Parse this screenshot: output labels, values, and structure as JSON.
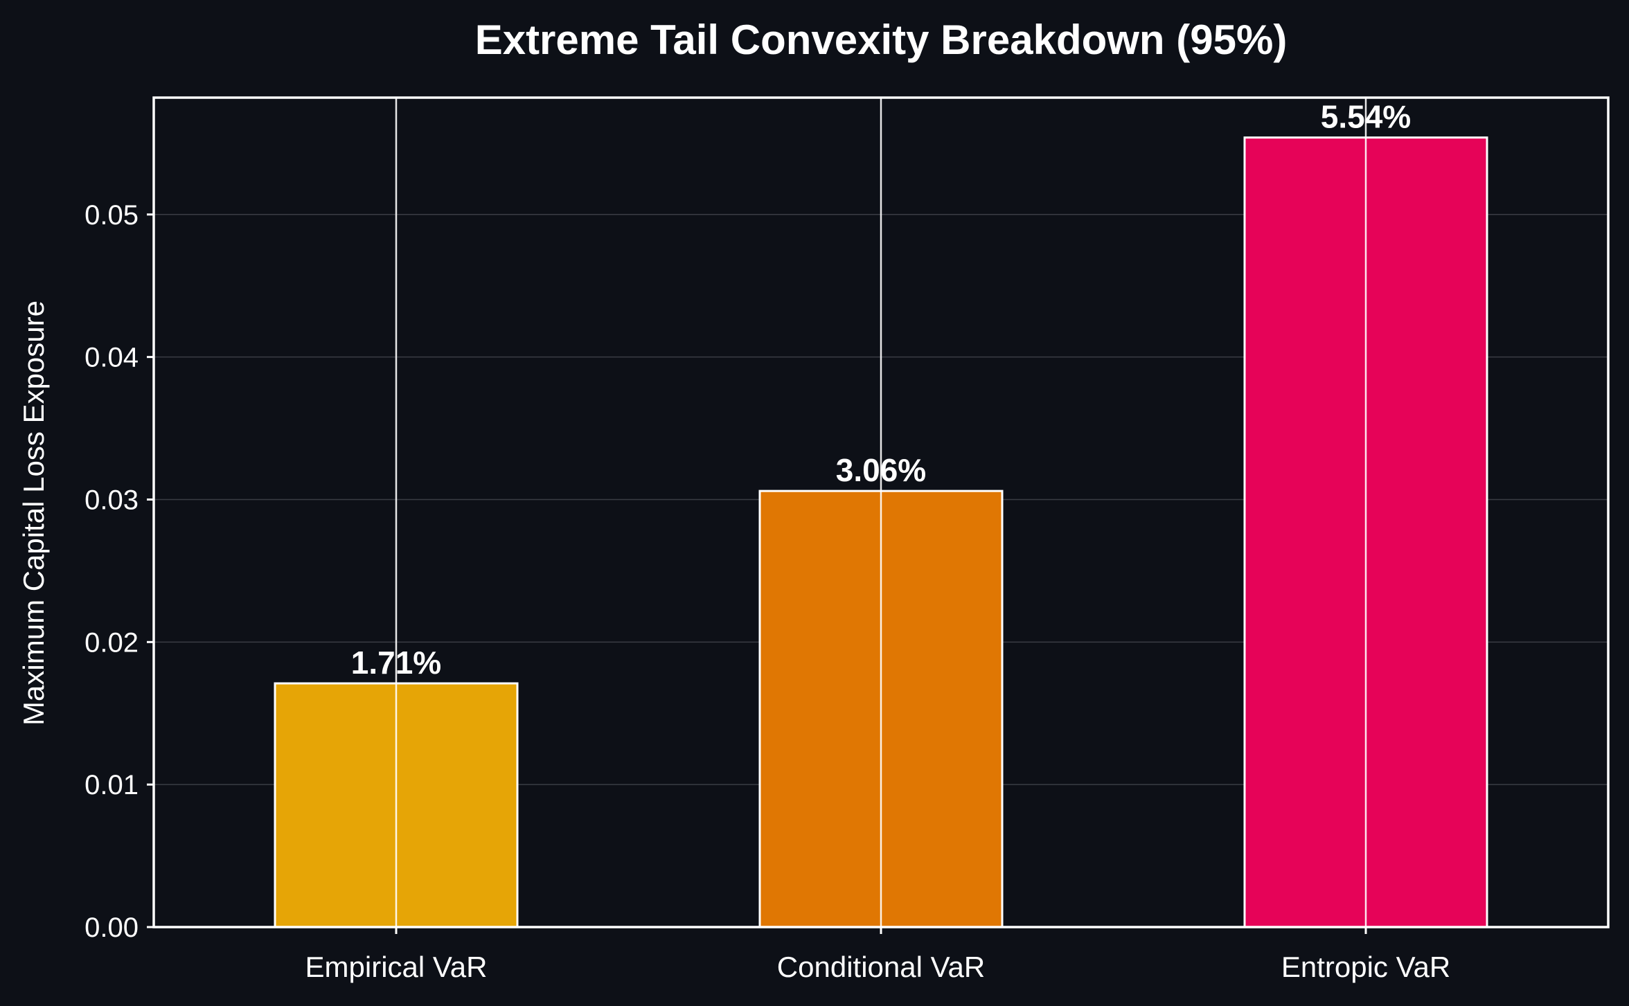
{
  "chart_data": {
    "type": "bar",
    "title": "Extreme Tail Convexity Breakdown (95%)",
    "xlabel": "",
    "ylabel": "Maximum Capital Loss Exposure",
    "categories": [
      "Empirical VaR",
      "Conditional VaR",
      "Entropic VaR"
    ],
    "values": [
      0.0171,
      0.0306,
      0.0554
    ],
    "value_labels": [
      "1.71%",
      "3.06%",
      "5.54%"
    ],
    "bar_colors": [
      "#e6a506",
      "#e07703",
      "#e60358"
    ],
    "ylim": [
      0,
      0.0582
    ],
    "yticks": [
      0.0,
      0.01,
      0.02,
      0.03,
      0.04,
      0.05
    ],
    "ytick_labels": [
      "0.00",
      "0.01",
      "0.02",
      "0.03",
      "0.04",
      "0.05"
    ],
    "grid": true,
    "background_color": "#0d1017",
    "axis_color": "#ffffff",
    "grid_color": "#3a3d44"
  }
}
